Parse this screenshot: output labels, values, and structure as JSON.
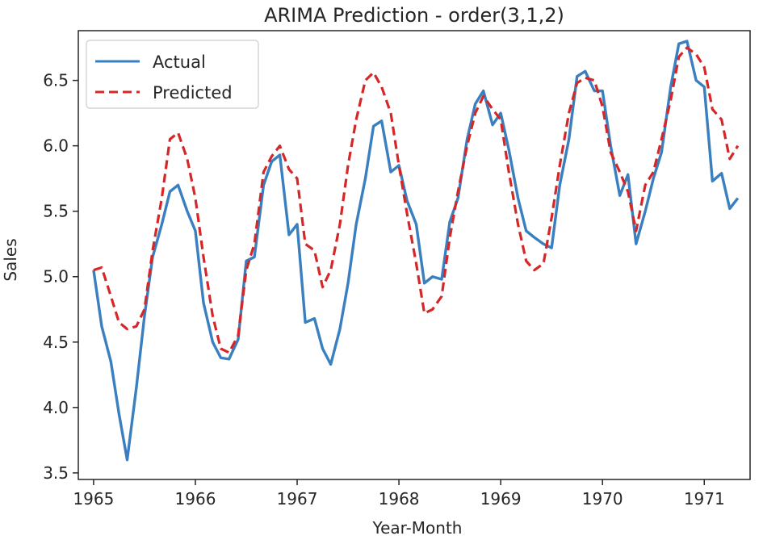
{
  "chart_data": {
    "type": "line",
    "title": "ARIMA Prediction - order(3,1,2)",
    "xlabel": "Year-Month",
    "ylabel": "Sales",
    "xlim": [
      1964.85,
      1971.45
    ],
    "ylim": [
      3.45,
      6.88
    ],
    "x_ticks": [
      1965,
      1966,
      1967,
      1968,
      1969,
      1970,
      1971
    ],
    "x_tick_labels": [
      "1965",
      "1966",
      "1967",
      "1968",
      "1969",
      "1970",
      "1971"
    ],
    "y_ticks": [
      3.5,
      4.0,
      4.5,
      5.0,
      5.5,
      6.0,
      6.5
    ],
    "y_tick_labels": [
      "3.5",
      "4.0",
      "4.5",
      "5.0",
      "5.5",
      "6.0",
      "6.5"
    ],
    "grid": false,
    "legend_position": "upper-left",
    "series": [
      {
        "name": "Actual",
        "color": "#3a7fbf",
        "style": "solid",
        "points": [
          [
            1965.0,
            5.05
          ],
          [
            1965.08,
            4.62
          ],
          [
            1965.17,
            4.35
          ],
          [
            1965.25,
            3.95
          ],
          [
            1965.33,
            3.6
          ],
          [
            1965.42,
            4.15
          ],
          [
            1965.5,
            4.7
          ],
          [
            1965.58,
            5.15
          ],
          [
            1965.67,
            5.4
          ],
          [
            1965.75,
            5.65
          ],
          [
            1965.83,
            5.7
          ],
          [
            1965.92,
            5.5
          ],
          [
            1966.0,
            5.35
          ],
          [
            1966.08,
            4.8
          ],
          [
            1966.17,
            4.5
          ],
          [
            1966.25,
            4.38
          ],
          [
            1966.33,
            4.37
          ],
          [
            1966.42,
            4.52
          ],
          [
            1966.5,
            5.12
          ],
          [
            1966.58,
            5.15
          ],
          [
            1966.67,
            5.7
          ],
          [
            1966.75,
            5.88
          ],
          [
            1966.83,
            5.93
          ],
          [
            1966.92,
            5.32
          ],
          [
            1967.0,
            5.4
          ],
          [
            1967.08,
            4.65
          ],
          [
            1967.17,
            4.68
          ],
          [
            1967.25,
            4.45
          ],
          [
            1967.33,
            4.33
          ],
          [
            1967.42,
            4.6
          ],
          [
            1967.5,
            4.95
          ],
          [
            1967.58,
            5.4
          ],
          [
            1967.67,
            5.75
          ],
          [
            1967.75,
            6.15
          ],
          [
            1967.83,
            6.19
          ],
          [
            1967.92,
            5.8
          ],
          [
            1968.0,
            5.85
          ],
          [
            1968.08,
            5.58
          ],
          [
            1968.17,
            5.4
          ],
          [
            1968.25,
            4.95
          ],
          [
            1968.33,
            5.0
          ],
          [
            1968.42,
            4.98
          ],
          [
            1968.5,
            5.42
          ],
          [
            1968.58,
            5.6
          ],
          [
            1968.67,
            6.05
          ],
          [
            1968.75,
            6.32
          ],
          [
            1968.83,
            6.42
          ],
          [
            1968.92,
            6.16
          ],
          [
            1969.0,
            6.25
          ],
          [
            1969.08,
            5.97
          ],
          [
            1969.17,
            5.6
          ],
          [
            1969.25,
            5.35
          ],
          [
            1969.33,
            5.3
          ],
          [
            1969.42,
            5.25
          ],
          [
            1969.5,
            5.22
          ],
          [
            1969.58,
            5.7
          ],
          [
            1969.67,
            6.05
          ],
          [
            1969.75,
            6.53
          ],
          [
            1969.83,
            6.57
          ],
          [
            1969.92,
            6.42
          ],
          [
            1970.0,
            6.42
          ],
          [
            1970.08,
            6.0
          ],
          [
            1970.17,
            5.62
          ],
          [
            1970.25,
            5.78
          ],
          [
            1970.33,
            5.25
          ],
          [
            1970.42,
            5.5
          ],
          [
            1970.5,
            5.75
          ],
          [
            1970.58,
            5.95
          ],
          [
            1970.67,
            6.45
          ],
          [
            1970.75,
            6.78
          ],
          [
            1970.83,
            6.8
          ],
          [
            1970.92,
            6.5
          ],
          [
            1971.0,
            6.45
          ],
          [
            1971.08,
            5.73
          ],
          [
            1971.17,
            5.79
          ],
          [
            1971.25,
            5.52
          ],
          [
            1971.33,
            5.6
          ]
        ]
      },
      {
        "name": "Predicted",
        "color": "#d62728",
        "style": "dashed",
        "points": [
          [
            1965.0,
            5.05
          ],
          [
            1965.08,
            5.07
          ],
          [
            1965.17,
            4.85
          ],
          [
            1965.25,
            4.65
          ],
          [
            1965.33,
            4.6
          ],
          [
            1965.42,
            4.62
          ],
          [
            1965.5,
            4.75
          ],
          [
            1965.58,
            5.2
          ],
          [
            1965.67,
            5.6
          ],
          [
            1965.75,
            6.05
          ],
          [
            1965.83,
            6.1
          ],
          [
            1965.92,
            5.9
          ],
          [
            1966.0,
            5.6
          ],
          [
            1966.08,
            5.15
          ],
          [
            1966.17,
            4.7
          ],
          [
            1966.25,
            4.45
          ],
          [
            1966.33,
            4.42
          ],
          [
            1966.42,
            4.55
          ],
          [
            1966.5,
            5.05
          ],
          [
            1966.58,
            5.25
          ],
          [
            1966.67,
            5.8
          ],
          [
            1966.75,
            5.92
          ],
          [
            1966.83,
            6.0
          ],
          [
            1966.92,
            5.82
          ],
          [
            1967.0,
            5.75
          ],
          [
            1967.08,
            5.25
          ],
          [
            1967.17,
            5.2
          ],
          [
            1967.25,
            4.92
          ],
          [
            1967.33,
            5.05
          ],
          [
            1967.42,
            5.4
          ],
          [
            1967.5,
            5.85
          ],
          [
            1967.58,
            6.2
          ],
          [
            1967.67,
            6.5
          ],
          [
            1967.75,
            6.56
          ],
          [
            1967.83,
            6.45
          ],
          [
            1967.92,
            6.25
          ],
          [
            1968.0,
            5.85
          ],
          [
            1968.08,
            5.48
          ],
          [
            1968.17,
            5.1
          ],
          [
            1968.25,
            4.72
          ],
          [
            1968.33,
            4.75
          ],
          [
            1968.42,
            4.85
          ],
          [
            1968.5,
            5.3
          ],
          [
            1968.58,
            5.65
          ],
          [
            1968.67,
            6.0
          ],
          [
            1968.75,
            6.25
          ],
          [
            1968.83,
            6.38
          ],
          [
            1968.92,
            6.28
          ],
          [
            1969.0,
            6.2
          ],
          [
            1969.08,
            5.8
          ],
          [
            1969.17,
            5.4
          ],
          [
            1969.25,
            5.12
          ],
          [
            1969.33,
            5.05
          ],
          [
            1969.42,
            5.1
          ],
          [
            1969.5,
            5.45
          ],
          [
            1969.58,
            5.85
          ],
          [
            1969.67,
            6.25
          ],
          [
            1969.75,
            6.48
          ],
          [
            1969.83,
            6.52
          ],
          [
            1969.92,
            6.5
          ],
          [
            1970.0,
            6.3
          ],
          [
            1970.08,
            5.95
          ],
          [
            1970.17,
            5.8
          ],
          [
            1970.25,
            5.65
          ],
          [
            1970.33,
            5.35
          ],
          [
            1970.42,
            5.7
          ],
          [
            1970.5,
            5.8
          ],
          [
            1970.58,
            6.05
          ],
          [
            1970.67,
            6.35
          ],
          [
            1970.75,
            6.68
          ],
          [
            1970.83,
            6.75
          ],
          [
            1970.92,
            6.7
          ],
          [
            1971.0,
            6.6
          ],
          [
            1971.08,
            6.28
          ],
          [
            1971.17,
            6.2
          ],
          [
            1971.25,
            5.9
          ],
          [
            1971.33,
            6.0
          ]
        ]
      }
    ]
  }
}
